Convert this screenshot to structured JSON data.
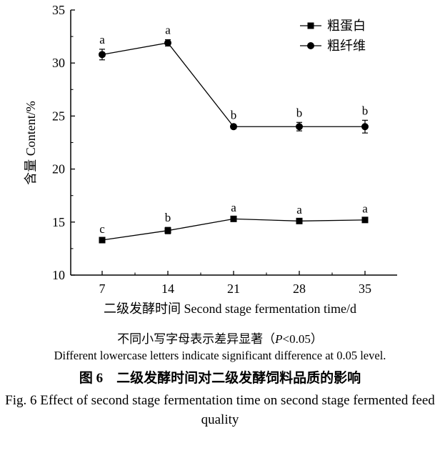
{
  "chart_data": {
    "type": "line",
    "categories": [
      "7",
      "14",
      "21",
      "28",
      "35"
    ],
    "x": [
      7,
      14,
      21,
      28,
      35
    ],
    "xlabel": "二级发酵时间 Second stage fermentation time/d",
    "ylabel": "含量 Content/%",
    "ylim": [
      10,
      35
    ],
    "yticks": [
      10,
      15,
      20,
      25,
      30,
      35
    ],
    "yticks_labels": [
      "10",
      "15",
      "20",
      "25",
      "30",
      "35"
    ],
    "legend_position": "top-right",
    "series": [
      {
        "name": "粗蛋白",
        "marker": "square",
        "values": [
          13.3,
          14.2,
          15.3,
          15.1,
          15.2
        ],
        "errors": [
          0.15,
          0.3,
          0.15,
          0.15,
          0.15
        ],
        "letters": [
          "c",
          "b",
          "a",
          "a",
          "a"
        ]
      },
      {
        "name": "粗纤维",
        "marker": "circle",
        "values": [
          30.8,
          31.9,
          24.0,
          24.0,
          24.0
        ],
        "errors": [
          0.5,
          0.3,
          0.2,
          0.4,
          0.6
        ],
        "letters": [
          "a",
          "a",
          "b",
          "b",
          "b"
        ]
      }
    ]
  },
  "captions": {
    "note_cn_prefix": "不同小写字母表示差异显著（",
    "note_cn_p": "P",
    "note_cn_suffix": "<0.05）",
    "note_en": "Different lowercase letters indicate significant difference at 0.05 level.",
    "fig_label_cn": "图 6",
    "fig_title_cn": "二级发酵时间对二级发酵饲料品质的影响",
    "fig_title_en": "Fig. 6    Effect of second stage fermentation time on second stage fermented feed quality"
  }
}
